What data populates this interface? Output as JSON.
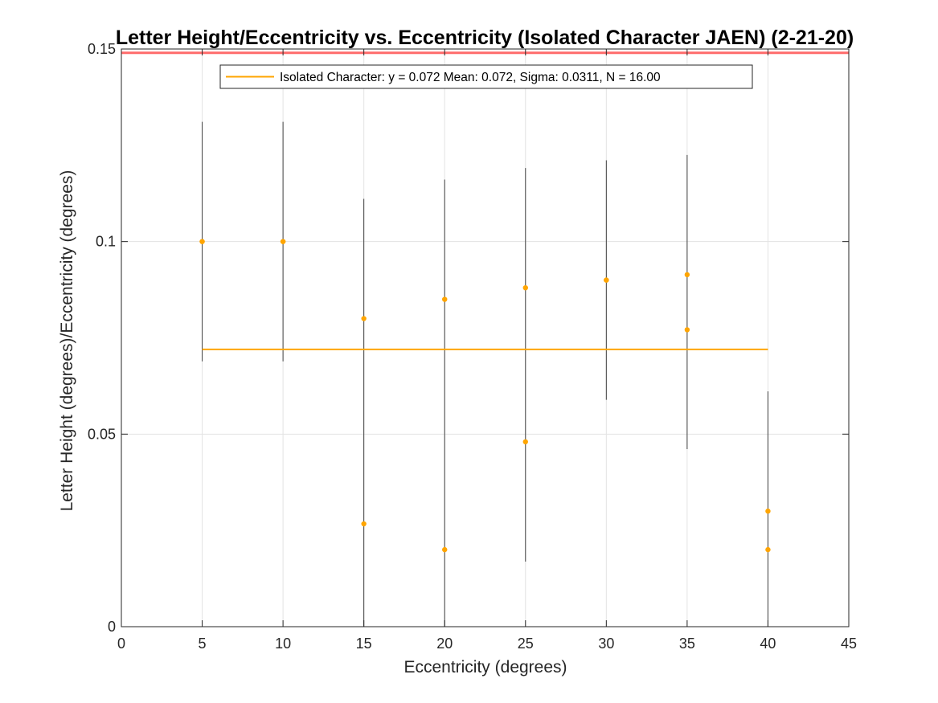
{
  "chart_data": {
    "type": "scatter",
    "title": "Letter Height/Eccentricity vs. Eccentricity (Isolated Character JAEN) (2-21-20)",
    "xlabel": "Eccentricity (degrees)",
    "ylabel": "Letter Height (degrees)/Eccentricity (degrees)",
    "xlim": [
      0,
      45
    ],
    "ylim": [
      0,
      0.15
    ],
    "xticks": [
      0,
      5,
      10,
      15,
      20,
      25,
      30,
      35,
      40,
      45
    ],
    "xtick_labels": [
      "0",
      "5",
      "10",
      "15",
      "20",
      "25",
      "30",
      "35",
      "40",
      "45"
    ],
    "yticks": [
      0,
      0.05,
      0.1,
      0.15
    ],
    "ytick_labels": [
      "0",
      "0.05",
      "0.1",
      "0.15"
    ],
    "grid": true,
    "legend_position": "top-center",
    "series": [
      {
        "name": "Isolated Character: y = 0.072 Mean: 0.072, Sigma: 0.0311, N = 16.00",
        "color": "#ffa500",
        "points": [
          {
            "x": 5,
            "y": 0.1
          },
          {
            "x": 5,
            "y": 0.1
          },
          {
            "x": 10,
            "y": 0.1
          },
          {
            "x": 10,
            "y": 0.1
          },
          {
            "x": 15,
            "y": 0.08
          },
          {
            "x": 15,
            "y": 0.0267
          },
          {
            "x": 20,
            "y": 0.085
          },
          {
            "x": 20,
            "y": 0.02
          },
          {
            "x": 25,
            "y": 0.088
          },
          {
            "x": 25,
            "y": 0.048
          },
          {
            "x": 30,
            "y": 0.09
          },
          {
            "x": 30,
            "y": 0.09
          },
          {
            "x": 35,
            "y": 0.0914
          },
          {
            "x": 35,
            "y": 0.0771
          },
          {
            "x": 40,
            "y": 0.03
          },
          {
            "x": 40,
            "y": 0.02
          }
        ]
      }
    ],
    "mean_line": {
      "y": 0.072,
      "x_range": [
        5,
        40
      ],
      "color": "#ffa500"
    },
    "reference_line": {
      "y": 0.149,
      "color": "#ff6b6b"
    },
    "error_bars": [
      {
        "x": 5,
        "low": 0.0689,
        "high": 0.1311
      },
      {
        "x": 10,
        "low": 0.0689,
        "high": 0.1311
      },
      {
        "x": 15,
        "low": 0,
        "high": 0.1111
      },
      {
        "x": 20,
        "low": 0,
        "high": 0.1161
      },
      {
        "x": 25,
        "low": 0.0169,
        "high": 0.1191
      },
      {
        "x": 30,
        "low": 0.0589,
        "high": 0.1211
      },
      {
        "x": 35,
        "low": 0.0461,
        "high": 0.1225
      },
      {
        "x": 40,
        "low": 0,
        "high": 0.0611
      }
    ],
    "error_bar_color": "#404040"
  }
}
